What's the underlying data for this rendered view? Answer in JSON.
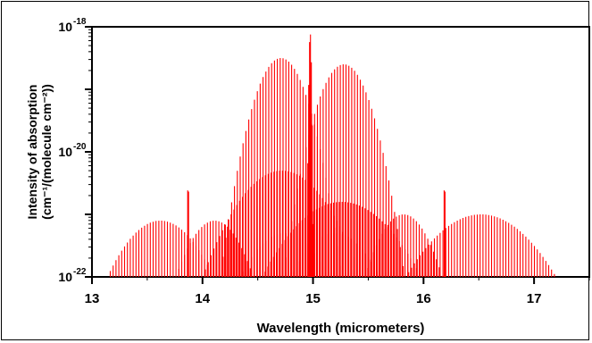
{
  "chart_data": {
    "type": "line",
    "xlabel": "Wavelength (micrometers)",
    "ylabel": [
      "Intensity of absorption",
      "(cm⁻¹/(molecule cm⁻²))"
    ],
    "xlim": [
      13.0,
      17.5
    ],
    "ylim_log10": [
      -22,
      -18
    ],
    "log_y": true,
    "grid": false,
    "line_color": "#ff0000",
    "x_ticks": [
      {
        "value": 13,
        "label": "13"
      },
      {
        "value": 14,
        "label": "14"
      },
      {
        "value": 15,
        "label": "15"
      },
      {
        "value": 16,
        "label": "16"
      },
      {
        "value": 17,
        "label": "17"
      }
    ],
    "y_ticks": [
      {
        "exp": -18,
        "base": "10",
        "sup": "-18"
      },
      {
        "exp": -20,
        "base": "10",
        "sup": "-20"
      },
      {
        "exp": -22,
        "base": "10",
        "sup": "-22"
      }
    ],
    "series": [
      {
        "center": 14.975,
        "half_width": 0.03,
        "peak_log10": -18.1
      },
      {
        "center": 14.71,
        "half_width": 0.55,
        "peak_log10": -18.5
      },
      {
        "center": 15.28,
        "half_width": 0.55,
        "peak_log10": -18.6
      },
      {
        "center": 14.72,
        "half_width": 0.72,
        "peak_log10": -20.3
      },
      {
        "center": 15.26,
        "half_width": 0.72,
        "peak_log10": -20.8
      },
      {
        "center": 13.62,
        "half_width": 0.48,
        "peak_log10": -21.1
      },
      {
        "center": 14.11,
        "half_width": 0.35,
        "peak_log10": -21.1
      },
      {
        "center": 15.82,
        "half_width": 0.35,
        "peak_log10": -21.0
      },
      {
        "center": 16.52,
        "half_width": 0.68,
        "peak_log10": -21.0
      },
      {
        "center": 14.74,
        "half_width": 0.4,
        "peak_log10": -21.3
      },
      {
        "center": 15.2,
        "half_width": 0.4,
        "peak_log10": -21.3
      },
      {
        "center": 13.87,
        "half_width": 0.012,
        "peak_log10": -20.45
      },
      {
        "center": 16.19,
        "half_width": 0.012,
        "peak_log10": -20.45
      }
    ]
  }
}
